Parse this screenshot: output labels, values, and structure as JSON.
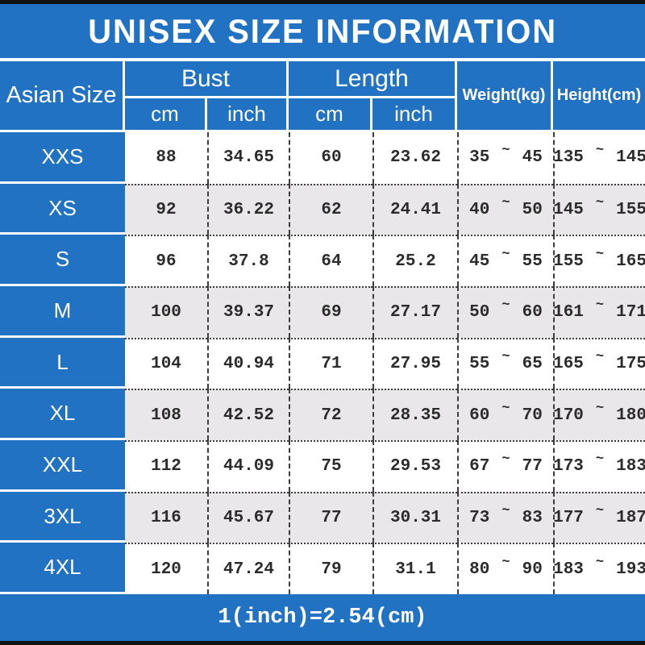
{
  "chart_data": {
    "type": "table",
    "title": "UNISEX SIZE INFORMATION",
    "header": {
      "asian_size": "Asian Size",
      "bust": "Bust",
      "length": "Length",
      "cm": "cm",
      "inch": "inch",
      "weight": "Weight(kg)",
      "height": "Height(cm)"
    },
    "range_separator": "~",
    "rows": [
      {
        "size": "XXS",
        "bust_cm": "88",
        "bust_inch": "34.65",
        "length_cm": "60",
        "length_inch": "23.62",
        "weight_min": "35",
        "weight_max": "45",
        "height_min": "135",
        "height_max": "145"
      },
      {
        "size": "XS",
        "bust_cm": "92",
        "bust_inch": "36.22",
        "length_cm": "62",
        "length_inch": "24.41",
        "weight_min": "40",
        "weight_max": "50",
        "height_min": "145",
        "height_max": "155"
      },
      {
        "size": "S",
        "bust_cm": "96",
        "bust_inch": "37.8",
        "length_cm": "64",
        "length_inch": "25.2",
        "weight_min": "45",
        "weight_max": "55",
        "height_min": "155",
        "height_max": "165"
      },
      {
        "size": "M",
        "bust_cm": "100",
        "bust_inch": "39.37",
        "length_cm": "69",
        "length_inch": "27.17",
        "weight_min": "50",
        "weight_max": "60",
        "height_min": "161",
        "height_max": "171"
      },
      {
        "size": "L",
        "bust_cm": "104",
        "bust_inch": "40.94",
        "length_cm": "71",
        "length_inch": "27.95",
        "weight_min": "55",
        "weight_max": "65",
        "height_min": "165",
        "height_max": "175"
      },
      {
        "size": "XL",
        "bust_cm": "108",
        "bust_inch": "42.52",
        "length_cm": "72",
        "length_inch": "28.35",
        "weight_min": "60",
        "weight_max": "70",
        "height_min": "170",
        "height_max": "180"
      },
      {
        "size": "XXL",
        "bust_cm": "112",
        "bust_inch": "44.09",
        "length_cm": "75",
        "length_inch": "29.53",
        "weight_min": "67",
        "weight_max": "77",
        "height_min": "173",
        "height_max": "183"
      },
      {
        "size": "3XL",
        "bust_cm": "116",
        "bust_inch": "45.67",
        "length_cm": "77",
        "length_inch": "30.31",
        "weight_min": "73",
        "weight_max": "83",
        "height_min": "177",
        "height_max": "187"
      },
      {
        "size": "4XL",
        "bust_cm": "120",
        "bust_inch": "47.24",
        "length_cm": "79",
        "length_inch": "31.1",
        "weight_min": "80",
        "weight_max": "90",
        "height_min": "183",
        "height_max": "193"
      }
    ],
    "footer_note": "1(inch)=2.54(cm)"
  },
  "colors": {
    "accent_blue": "#2272c3",
    "alt_row_gray": "#e9e7e9",
    "grid_line_dark": "#3c3c3c",
    "bar_black": "#121212",
    "text_white": "#ffffff",
    "text_dark": "#2b2b2b"
  }
}
